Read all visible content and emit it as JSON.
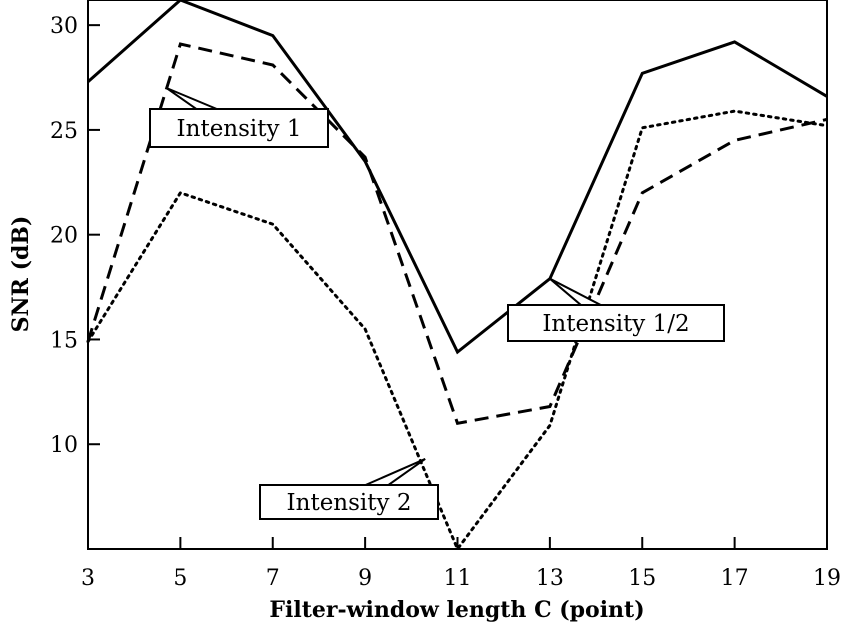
{
  "chart_data": {
    "type": "line",
    "xlabel": "Filter-window length C (point)",
    "ylabel": "SNR (dB)",
    "xlim": [
      3,
      19
    ],
    "ylim": [
      5,
      31.2
    ],
    "xticks": [
      3,
      5,
      7,
      9,
      11,
      13,
      15,
      17,
      19
    ],
    "yticks": [
      10,
      15,
      20,
      25,
      30
    ],
    "grid": false,
    "x": [
      3,
      5,
      7,
      9,
      11,
      13,
      15,
      17,
      19
    ],
    "series": [
      {
        "name": "Intensity 1/2",
        "style": "solid",
        "values": [
          27.3,
          31.2,
          29.5,
          23.5,
          14.4,
          17.9,
          27.7,
          29.2,
          26.6
        ]
      },
      {
        "name": "Intensity 1",
        "style": "dashed",
        "values": [
          14.9,
          29.1,
          28.1,
          23.7,
          11.0,
          11.8,
          22.0,
          24.5,
          25.5
        ]
      },
      {
        "name": "Intensity 2",
        "style": "dotted",
        "values": [
          14.9,
          22.0,
          20.5,
          15.5,
          5.0,
          10.9,
          25.1,
          25.9,
          25.2
        ]
      }
    ],
    "annotations": [
      {
        "text": "Intensity 1",
        "series": "Intensity 1",
        "pointer_x": 4.7,
        "pointer_y": 27.0
      },
      {
        "text": "Intensity 1/2",
        "series": "Intensity 1/2",
        "pointer_x": 13.0,
        "pointer_y": 17.9
      },
      {
        "text": "Intensity 2",
        "series": "Intensity 2",
        "pointer_x": 10.3,
        "pointer_y": 9.3
      }
    ]
  }
}
